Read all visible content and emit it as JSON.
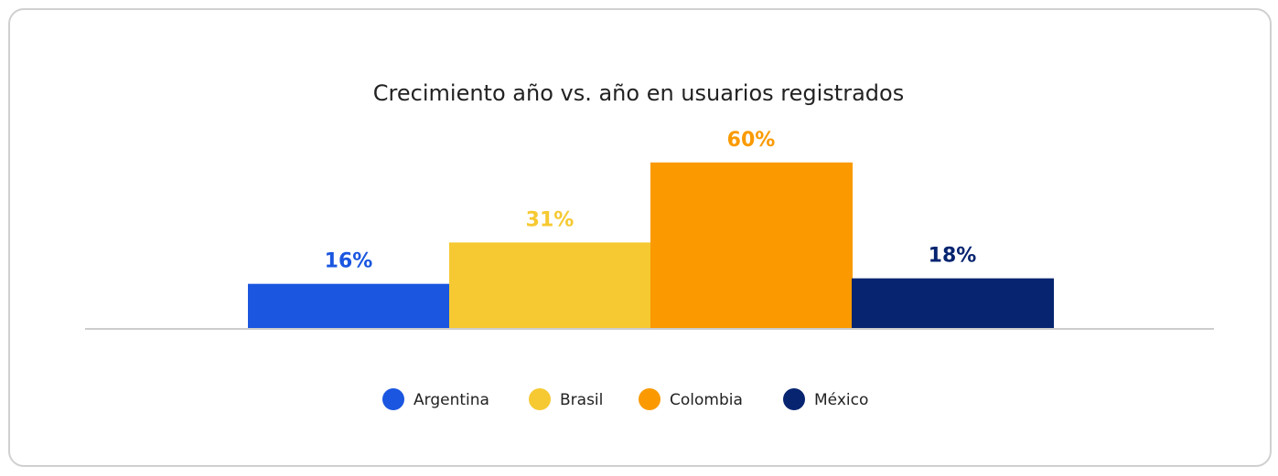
{
  "chart_data": {
    "type": "bar",
    "title": "Crecimiento año vs. año en usuarios registrados",
    "series": [
      {
        "name": "Argentina",
        "color": "#1a56e0",
        "values": [
          16
        ],
        "value_labels": [
          "16%"
        ]
      },
      {
        "name": "Brasil",
        "color": "#f6c932",
        "values": [
          31
        ],
        "value_labels": [
          "31%"
        ]
      },
      {
        "name": "Colombia",
        "color": "#fa9a00",
        "values": [
          60
        ],
        "value_labels": [
          "60%"
        ]
      },
      {
        "name": "México",
        "color": "#062470",
        "values": [
          18
        ],
        "value_labels": [
          "18%"
        ]
      }
    ]
  }
}
